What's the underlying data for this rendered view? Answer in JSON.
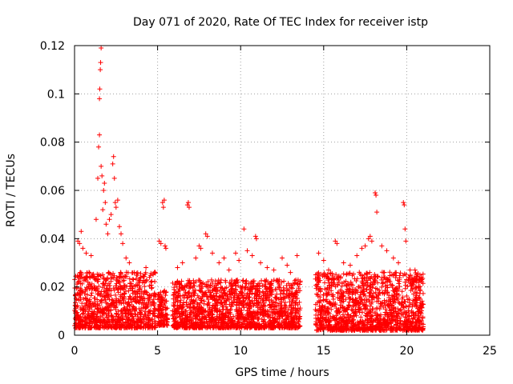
{
  "chart_data": {
    "type": "scatter",
    "title": "Day 071 of 2020, Rate Of TEC Index for receiver istp",
    "xlabel": "GPS time / hours",
    "ylabel": "ROTI / TECUs",
    "xlim": [
      0,
      25
    ],
    "ylim": [
      0,
      0.12
    ],
    "xticks": [
      0,
      5,
      10,
      15,
      20,
      25
    ],
    "yticks": [
      0,
      0.02,
      0.04,
      0.06,
      0.08,
      0.1,
      0.12
    ],
    "xtick_labels": [
      "0",
      "5",
      "10",
      "15",
      "20",
      "25"
    ],
    "ytick_labels": [
      "0",
      "0.02",
      "0.04",
      "0.06",
      "0.08",
      "0.1",
      "0.12"
    ],
    "grid": true,
    "marker": "+",
    "color": "#ff0000",
    "series": [
      {
        "name": "ROTI",
        "segments": [
          {
            "x_start": 0.0,
            "x_end": 4.9,
            "typical_max": 0.025,
            "floor": 0.003
          },
          {
            "x_start": 5.0,
            "x_end": 5.6,
            "typical_max": 0.018,
            "floor": 0.004
          },
          {
            "x_start": 5.9,
            "x_end": 13.6,
            "typical_max": 0.022,
            "floor": 0.003
          },
          {
            "x_start": 14.5,
            "x_end": 21.0,
            "typical_max": 0.025,
            "floor": 0.002
          }
        ],
        "points": [
          [
            0.2,
            0.039
          ],
          [
            0.3,
            0.038
          ],
          [
            0.4,
            0.043
          ],
          [
            0.5,
            0.036
          ],
          [
            0.7,
            0.034
          ],
          [
            1.0,
            0.033
          ],
          [
            1.3,
            0.048
          ],
          [
            1.4,
            0.065
          ],
          [
            1.45,
            0.078
          ],
          [
            1.5,
            0.083
          ],
          [
            1.5,
            0.098
          ],
          [
            1.52,
            0.102
          ],
          [
            1.55,
            0.11
          ],
          [
            1.57,
            0.113
          ],
          [
            1.6,
            0.119
          ],
          [
            1.6,
            0.07
          ],
          [
            1.65,
            0.066
          ],
          [
            1.7,
            0.052
          ],
          [
            1.75,
            0.06
          ],
          [
            1.8,
            0.063
          ],
          [
            1.85,
            0.055
          ],
          [
            1.9,
            0.046
          ],
          [
            2.0,
            0.042
          ],
          [
            2.1,
            0.048
          ],
          [
            2.2,
            0.05
          ],
          [
            2.3,
            0.071
          ],
          [
            2.35,
            0.074
          ],
          [
            2.4,
            0.065
          ],
          [
            2.45,
            0.055
          ],
          [
            2.5,
            0.053
          ],
          [
            2.6,
            0.056
          ],
          [
            2.7,
            0.045
          ],
          [
            2.8,
            0.042
          ],
          [
            2.9,
            0.038
          ],
          [
            3.1,
            0.032
          ],
          [
            3.3,
            0.03
          ],
          [
            3.6,
            0.026
          ],
          [
            4.0,
            0.024
          ],
          [
            4.3,
            0.028
          ],
          [
            4.6,
            0.022
          ],
          [
            5.1,
            0.039
          ],
          [
            5.2,
            0.038
          ],
          [
            5.3,
            0.055
          ],
          [
            5.4,
            0.056
          ],
          [
            5.35,
            0.053
          ],
          [
            5.5,
            0.036
          ],
          [
            5.45,
            0.037
          ],
          [
            6.2,
            0.028
          ],
          [
            6.5,
            0.03
          ],
          [
            6.8,
            0.054
          ],
          [
            6.85,
            0.055
          ],
          [
            6.9,
            0.053
          ],
          [
            7.3,
            0.032
          ],
          [
            7.5,
            0.037
          ],
          [
            7.6,
            0.036
          ],
          [
            7.9,
            0.042
          ],
          [
            8.0,
            0.041
          ],
          [
            8.3,
            0.034
          ],
          [
            8.7,
            0.03
          ],
          [
            9.0,
            0.032
          ],
          [
            9.3,
            0.027
          ],
          [
            9.7,
            0.034
          ],
          [
            9.9,
            0.031
          ],
          [
            10.2,
            0.044
          ],
          [
            10.4,
            0.035
          ],
          [
            10.7,
            0.033
          ],
          [
            10.9,
            0.041
          ],
          [
            10.95,
            0.04
          ],
          [
            11.2,
            0.03
          ],
          [
            11.6,
            0.028
          ],
          [
            12.0,
            0.027
          ],
          [
            12.5,
            0.032
          ],
          [
            12.8,
            0.029
          ],
          [
            13.0,
            0.026
          ],
          [
            13.4,
            0.033
          ],
          [
            14.7,
            0.034
          ],
          [
            15.0,
            0.031
          ],
          [
            15.3,
            0.027
          ],
          [
            15.7,
            0.039
          ],
          [
            15.8,
            0.038
          ],
          [
            16.2,
            0.03
          ],
          [
            16.6,
            0.029
          ],
          [
            17.0,
            0.033
          ],
          [
            17.3,
            0.036
          ],
          [
            17.5,
            0.037
          ],
          [
            17.7,
            0.04
          ],
          [
            17.8,
            0.041
          ],
          [
            17.9,
            0.039
          ],
          [
            18.1,
            0.059
          ],
          [
            18.15,
            0.058
          ],
          [
            18.2,
            0.051
          ],
          [
            18.5,
            0.037
          ],
          [
            18.8,
            0.035
          ],
          [
            19.2,
            0.032
          ],
          [
            19.5,
            0.03
          ],
          [
            19.8,
            0.055
          ],
          [
            19.85,
            0.054
          ],
          [
            19.9,
            0.044
          ],
          [
            19.95,
            0.039
          ],
          [
            20.2,
            0.027
          ],
          [
            20.5,
            0.027
          ],
          [
            20.8,
            0.025
          ]
        ]
      }
    ]
  }
}
